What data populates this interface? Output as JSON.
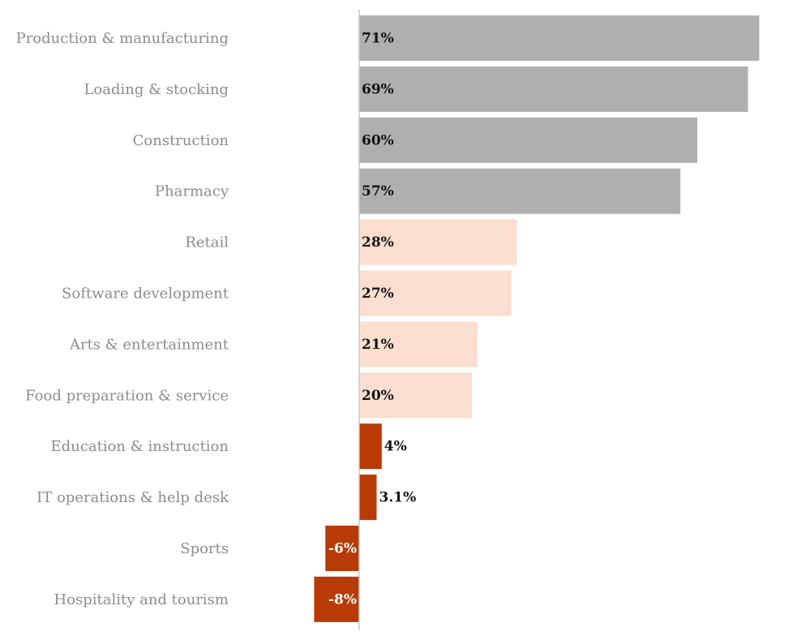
{
  "chart_data": {
    "type": "bar",
    "orientation": "horizontal",
    "title": "",
    "xlabel": "",
    "ylabel": "",
    "grid": false,
    "legend": "none",
    "xlim": [
      -10,
      73
    ],
    "categories": [
      "Production & manufacturing",
      "Loading & stocking",
      "Construction",
      "Pharmacy",
      "Retail",
      "Software development",
      "Arts & entertainment",
      "Food preparation & service",
      "Education & instruction",
      "IT operations & help desk",
      "Sports",
      "Hospitality and tourism"
    ],
    "values": [
      71,
      69,
      60,
      57,
      28,
      27,
      21,
      20,
      4,
      3.1,
      -6,
      -8
    ],
    "value_labels": [
      "71%",
      "69%",
      "60%",
      "57%",
      "28%",
      "27%",
      "21%",
      "20%",
      "4%",
      "3.1%",
      "-6%",
      "-8%"
    ],
    "groups": [
      "high",
      "high",
      "high",
      "high",
      "mid",
      "mid",
      "mid",
      "mid",
      "low",
      "low",
      "low",
      "low"
    ],
    "colors": {
      "high": "#afafaf",
      "mid": "#fbdecf",
      "low": "#b83a05",
      "axis": "#c8c8c8",
      "label_dark": "#111111",
      "label_light": "#ffffff",
      "category_text": "#8c8c8c"
    }
  }
}
